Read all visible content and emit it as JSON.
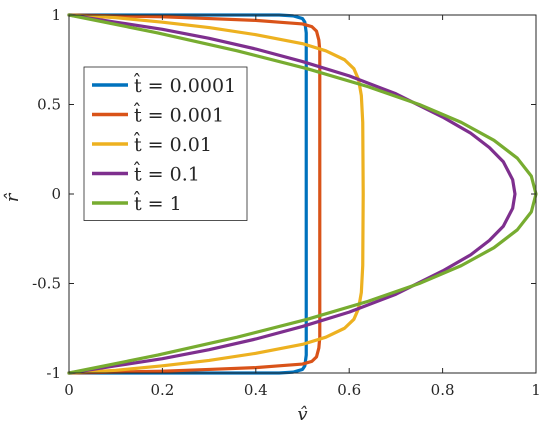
{
  "chart_data": {
    "type": "line",
    "title": "",
    "xlabel": "v̂",
    "ylabel": "r̂",
    "xlim": [
      0,
      1
    ],
    "ylim": [
      -1,
      1
    ],
    "xticks": [
      0,
      0.2,
      0.4,
      0.6,
      0.8,
      1
    ],
    "xtick_labels": [
      "0",
      "0.2",
      "0.4",
      "0.6",
      "0.8",
      "1"
    ],
    "yticks": [
      -1,
      -0.5,
      0,
      0.5,
      1
    ],
    "ytick_labels": [
      "-1",
      "-0.5",
      "0",
      "0.5",
      "1"
    ],
    "grid": false,
    "legend_position": "upper-left",
    "series": [
      {
        "name": "t̂ = 0.0001",
        "color": "#0072BD",
        "x": [
          0,
          0.1,
          0.2,
          0.3,
          0.4,
          0.45,
          0.48,
          0.5,
          0.505,
          0.508,
          0.508,
          0.508,
          0.505,
          0.5,
          0.48,
          0.45,
          0.4,
          0.3,
          0.2,
          0.1,
          0
        ],
        "y": [
          1,
          1,
          1,
          1,
          1,
          1,
          0.995,
          0.98,
          0.96,
          0.9,
          0,
          -0.9,
          -0.96,
          -0.98,
          -0.995,
          -1,
          -1,
          -1,
          -1,
          -1,
          -1
        ]
      },
      {
        "name": "t̂ = 0.001",
        "color": "#D95319",
        "x": [
          0,
          0.1,
          0.2,
          0.3,
          0.4,
          0.45,
          0.5,
          0.52,
          0.53,
          0.535,
          0.537,
          0.537,
          0.537,
          0.535,
          0.53,
          0.52,
          0.5,
          0.45,
          0.4,
          0.3,
          0.2,
          0.1,
          0
        ],
        "y": [
          1,
          0.995,
          0.99,
          0.98,
          0.97,
          0.96,
          0.95,
          0.935,
          0.91,
          0.86,
          0.8,
          0,
          -0.8,
          -0.86,
          -0.91,
          -0.935,
          -0.95,
          -0.96,
          -0.97,
          -0.98,
          -0.99,
          -0.995,
          -1
        ]
      },
      {
        "name": "t̂ = 0.01",
        "color": "#EDB120",
        "x": [
          0,
          0.1,
          0.2,
          0.3,
          0.4,
          0.5,
          0.55,
          0.59,
          0.61,
          0.62,
          0.626,
          0.629,
          0.63,
          0.629,
          0.626,
          0.62,
          0.61,
          0.59,
          0.55,
          0.5,
          0.4,
          0.3,
          0.2,
          0.1,
          0
        ],
        "y": [
          1,
          0.985,
          0.96,
          0.93,
          0.89,
          0.84,
          0.8,
          0.75,
          0.7,
          0.64,
          0.55,
          0.4,
          0,
          -0.4,
          -0.55,
          -0.64,
          -0.7,
          -0.75,
          -0.8,
          -0.84,
          -0.89,
          -0.93,
          -0.96,
          -0.985,
          -1
        ]
      },
      {
        "name": "t̂ = 0.1",
        "color": "#7E2F8E",
        "x": [
          0,
          0.1,
          0.2,
          0.3,
          0.4,
          0.5,
          0.6,
          0.7,
          0.8,
          0.86,
          0.9,
          0.93,
          0.95,
          0.955,
          0.95,
          0.93,
          0.9,
          0.86,
          0.8,
          0.7,
          0.6,
          0.5,
          0.4,
          0.3,
          0.2,
          0.1,
          0
        ],
        "y": [
          1,
          0.96,
          0.92,
          0.87,
          0.81,
          0.74,
          0.66,
          0.56,
          0.43,
          0.34,
          0.26,
          0.18,
          0.08,
          0,
          -0.08,
          -0.18,
          -0.26,
          -0.34,
          -0.43,
          -0.56,
          -0.66,
          -0.74,
          -0.81,
          -0.87,
          -0.92,
          -0.96,
          -1
        ]
      },
      {
        "name": "t̂ = 1",
        "color": "#77AC30",
        "x": [
          0,
          0.19,
          0.36,
          0.51,
          0.64,
          0.75,
          0.84,
          0.91,
          0.96,
          0.99,
          1,
          0.99,
          0.96,
          0.91,
          0.84,
          0.75,
          0.64,
          0.51,
          0.36,
          0.19,
          0
        ],
        "y": [
          1,
          0.9,
          0.8,
          0.7,
          0.6,
          0.5,
          0.4,
          0.3,
          0.2,
          0.1,
          0,
          -0.1,
          -0.2,
          -0.3,
          -0.4,
          -0.5,
          -0.6,
          -0.7,
          -0.8,
          -0.9,
          -1
        ]
      }
    ]
  }
}
